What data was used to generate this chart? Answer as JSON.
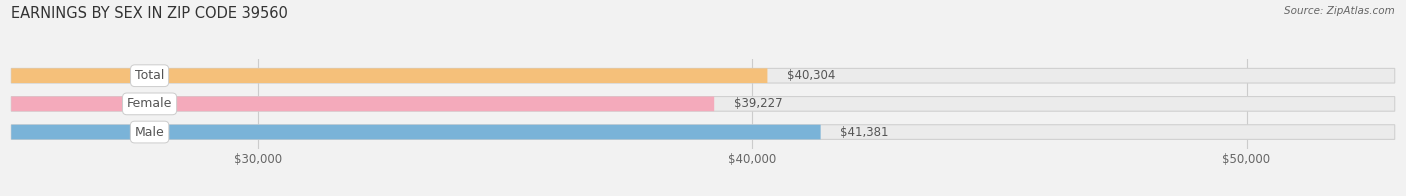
{
  "title": "EARNINGS BY SEX IN ZIP CODE 39560",
  "source": "Source: ZipAtlas.com",
  "categories": [
    "Male",
    "Female",
    "Total"
  ],
  "values": [
    41381,
    39227,
    40304
  ],
  "bar_colors": [
    "#7ab3d8",
    "#f4aabb",
    "#f5c07a"
  ],
  "chart_bg_color": "#f2f2f2",
  "bar_bg_color": "#ebebeb",
  "bar_border_color": "#d0d0d0",
  "xmin": 25000,
  "xmax": 53000,
  "xticks": [
    30000,
    40000,
    50000
  ],
  "xtick_labels": [
    "$30,000",
    "$40,000",
    "$50,000"
  ],
  "title_fontsize": 10.5,
  "bar_height": 0.52,
  "value_fontsize": 8.5,
  "label_fontsize": 9,
  "source_fontsize": 7.5
}
